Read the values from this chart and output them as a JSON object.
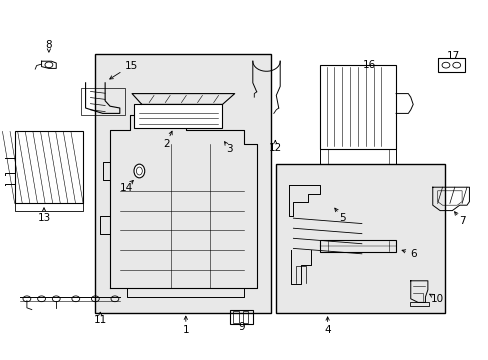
{
  "bg_color": "#ffffff",
  "line_color": "#000000",
  "gray_fill": "#e8e8e8",
  "figsize": [
    4.89,
    3.6
  ],
  "dpi": 100,
  "labels": {
    "1": [
      0.385,
      0.085,
      0.385,
      0.115
    ],
    "2": [
      0.345,
      0.595,
      0.36,
      0.62
    ],
    "3": [
      0.475,
      0.57,
      0.46,
      0.6
    ],
    "4": [
      0.67,
      0.085,
      0.67,
      0.115
    ],
    "5": [
      0.7,
      0.4,
      0.695,
      0.44
    ],
    "6": [
      0.835,
      0.32,
      0.8,
      0.32
    ],
    "7": [
      0.935,
      0.42,
      0.915,
      0.45
    ],
    "8": [
      0.105,
      0.875,
      0.115,
      0.845
    ],
    "9": [
      0.495,
      0.095,
      0.495,
      0.125
    ],
    "10": [
      0.895,
      0.175,
      0.875,
      0.195
    ],
    "11": [
      0.21,
      0.115,
      0.21,
      0.145
    ],
    "12": [
      0.565,
      0.595,
      0.565,
      0.625
    ],
    "13": [
      0.095,
      0.4,
      0.11,
      0.44
    ],
    "14": [
      0.265,
      0.485,
      0.275,
      0.515
    ],
    "15": [
      0.265,
      0.82,
      0.275,
      0.795
    ],
    "16": [
      0.755,
      0.82,
      0.755,
      0.795
    ],
    "17": [
      0.925,
      0.84,
      0.915,
      0.815
    ]
  }
}
